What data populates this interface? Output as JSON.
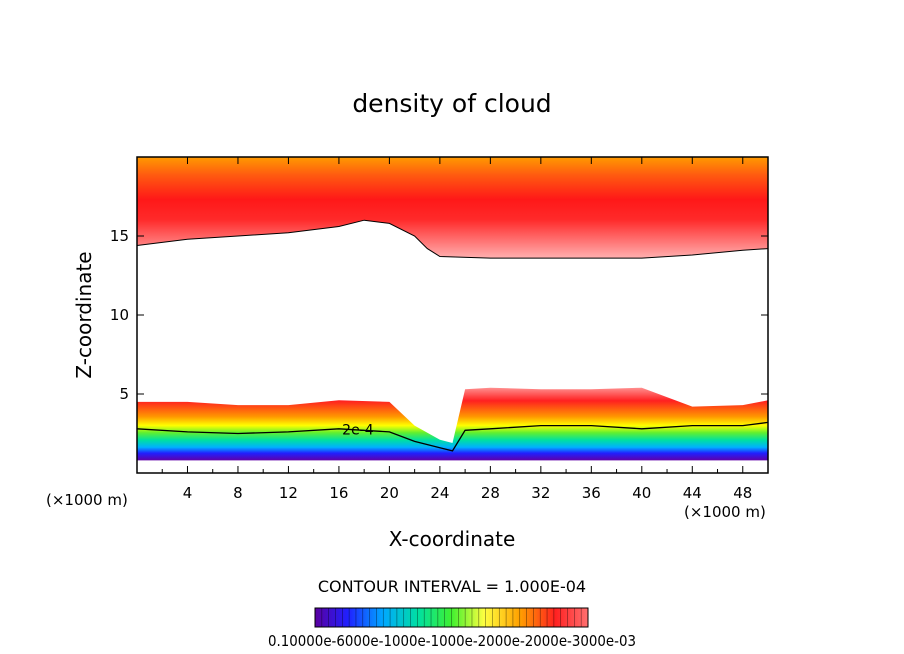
{
  "chart_data": {
    "type": "contour",
    "title": "density of cloud",
    "xlabel": "X-coordinate",
    "ylabel": "Z-coordinate",
    "x_unit": "(×1000 m)",
    "y_unit": "(×1000 m)",
    "xlim": [
      0,
      50
    ],
    "ylim": [
      0,
      20
    ],
    "x_ticks": [
      4,
      8,
      12,
      16,
      20,
      24,
      28,
      32,
      36,
      40,
      44,
      48
    ],
    "y_ticks": [
      5,
      10,
      15
    ],
    "contour_interval_text": "CONTOUR INTERVAL = 1.000E-04",
    "contour_label": "2e-4",
    "colorbar_label_text": "0.10000e-6000e-1000e-1000e-2000e-2000e-3000e-03",
    "colors": {
      "low": "#5a00a0",
      "mid_low": "#0050ff",
      "mid": "#20e030",
      "mid_high": "#ffff00",
      "high": "#ff0000",
      "top": "#ff8800",
      "pale": "#ff9999"
    },
    "upper_layer": {
      "x": [
        0,
        4,
        8,
        12,
        16,
        18,
        20,
        22,
        23,
        24,
        28,
        32,
        36,
        40,
        44,
        48,
        50
      ],
      "bottom_z": [
        14.4,
        14.8,
        15.0,
        15.2,
        15.6,
        16.0,
        15.8,
        15.0,
        14.2,
        13.7,
        13.6,
        13.6,
        13.6,
        13.6,
        13.8,
        14.1,
        14.2
      ],
      "top_z": 19.8
    },
    "lower_layer": {
      "x": [
        0,
        4,
        8,
        12,
        16,
        20,
        22,
        24,
        25,
        26,
        28,
        32,
        36,
        40,
        44,
        48,
        50
      ],
      "top_z": [
        4.5,
        4.5,
        4.3,
        4.3,
        4.6,
        4.5,
        3.0,
        2.1,
        1.9,
        5.3,
        5.4,
        5.3,
        5.3,
        5.4,
        4.2,
        4.3,
        4.6
      ],
      "contour_2e4_z": [
        2.8,
        2.6,
        2.5,
        2.6,
        2.8,
        2.6,
        2.0,
        1.6,
        1.4,
        2.7,
        2.8,
        3.0,
        3.0,
        2.8,
        3.0,
        3.0,
        3.2
      ],
      "bottom_z": 0.8
    }
  }
}
